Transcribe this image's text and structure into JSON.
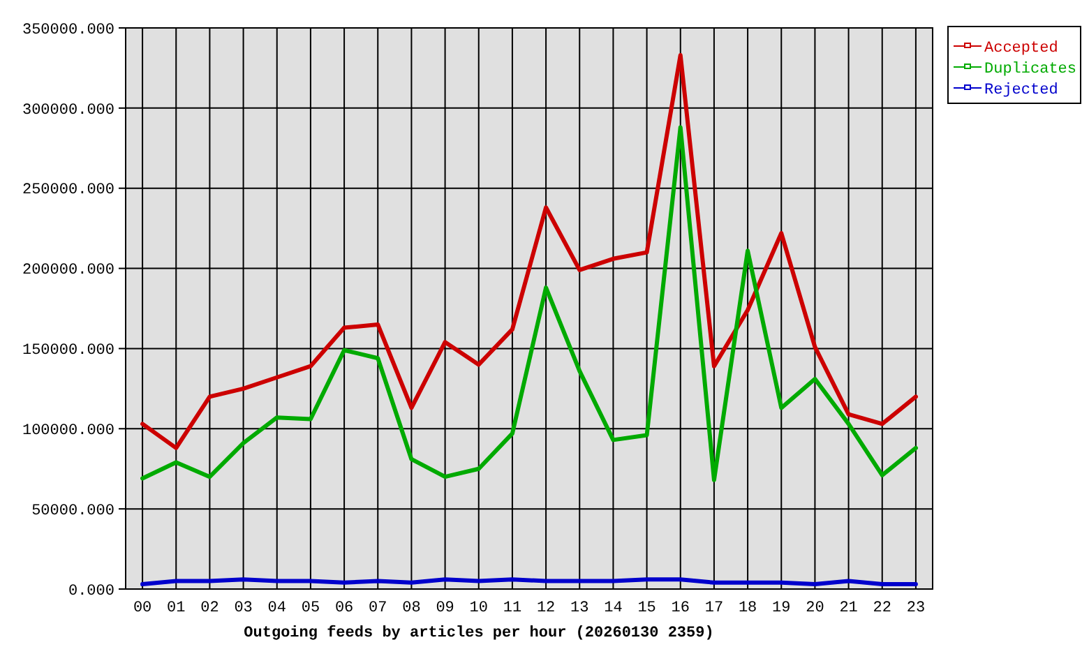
{
  "chart_data": {
    "type": "line",
    "xlabel": "Outgoing feeds by articles per hour (20260130 2359)",
    "categories": [
      "00",
      "01",
      "02",
      "03",
      "04",
      "05",
      "06",
      "07",
      "08",
      "09",
      "10",
      "11",
      "12",
      "13",
      "14",
      "15",
      "16",
      "17",
      "18",
      "19",
      "20",
      "21",
      "22",
      "23"
    ],
    "series": [
      {
        "name": "Accepted",
        "color": "#cc0000",
        "values": [
          103000,
          88000,
          120000,
          125000,
          132000,
          139000,
          163000,
          165000,
          113000,
          154000,
          140000,
          162000,
          238000,
          199000,
          206000,
          210000,
          333000,
          139000,
          174000,
          222000,
          151000,
          109000,
          103000,
          120000
        ]
      },
      {
        "name": "Duplicates",
        "color": "#00aa00",
        "values": [
          69000,
          79000,
          70000,
          91000,
          107000,
          106000,
          149000,
          144000,
          81000,
          70000,
          75000,
          97000,
          188000,
          136000,
          93000,
          96000,
          288000,
          68000,
          211000,
          113000,
          131000,
          103000,
          71000,
          88000
        ]
      },
      {
        "name": "Rejected",
        "color": "#0000cc",
        "values": [
          3000,
          5000,
          5000,
          6000,
          5000,
          5000,
          4000,
          5000,
          4000,
          6000,
          5000,
          6000,
          5000,
          5000,
          5000,
          6000,
          6000,
          4000,
          4000,
          4000,
          3000,
          5000,
          3000,
          3000
        ]
      }
    ],
    "ylim": [
      0,
      350000
    ],
    "yticks": [
      {
        "value": 0,
        "label": "0.000"
      },
      {
        "value": 50000,
        "label": "50000.000"
      },
      {
        "value": 100000,
        "label": "100000.000"
      },
      {
        "value": 150000,
        "label": "150000.000"
      },
      {
        "value": 200000,
        "label": "200000.000"
      },
      {
        "value": 250000,
        "label": "250000.000"
      },
      {
        "value": 300000,
        "label": "300000.000"
      },
      {
        "value": 350000,
        "label": "350000.000"
      }
    ],
    "grid": true,
    "legend": "top right"
  }
}
